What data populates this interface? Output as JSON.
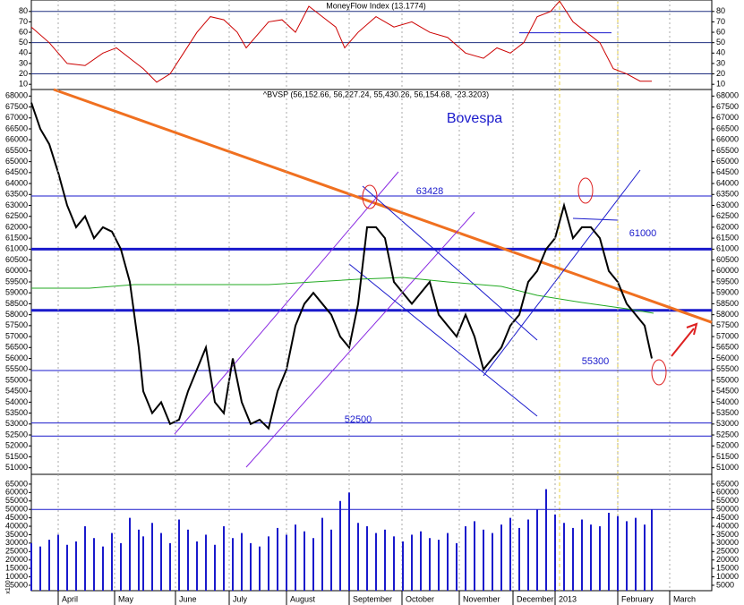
{
  "chart_data": [
    {
      "type": "line",
      "title": "MoneyFlow Index (13.1774)",
      "xlim": [
        0,
        76
      ],
      "ylim": [
        5,
        91
      ],
      "yticks": [
        10,
        20,
        30,
        40,
        50,
        60,
        70,
        80
      ],
      "levels": [
        20,
        50,
        80
      ],
      "x": [
        0,
        2,
        4,
        6,
        8,
        9.5,
        11,
        12.5,
        14,
        15.5,
        17,
        18.5,
        20,
        21.5,
        23,
        24,
        25,
        26.5,
        28,
        29.5,
        31,
        32.5,
        34,
        35,
        36.5,
        38.5,
        40.5,
        42.5,
        44.5,
        46.5,
        48.5,
        50.5,
        52,
        53.5,
        55,
        56.5,
        58,
        59,
        60.5,
        62,
        63.5,
        65,
        66.5,
        68,
        69.3
      ],
      "series": [
        {
          "color": "#cc0000",
          "values": [
            65,
            50,
            30,
            28,
            40,
            45,
            35,
            25,
            12,
            20,
            40,
            60,
            75,
            72,
            60,
            45,
            55,
            70,
            72,
            60,
            85,
            75,
            65,
            45,
            60,
            75,
            65,
            70,
            60,
            55,
            40,
            35,
            45,
            40,
            50,
            75,
            80,
            90,
            70,
            60,
            50,
            25,
            20,
            13,
            13
          ]
        }
      ],
      "trendlines": [
        {
          "color": "#1a1acc",
          "x": [
            54.5,
            64.8
          ],
          "y": [
            59.5,
            59.5
          ]
        }
      ]
    },
    {
      "type": "line",
      "title": "Bovespa",
      "subtitle": "^BVSP (56,152.66, 56,227.24, 55,430.26, 56,154.68, -23.3203)",
      "xlim": [
        0,
        76
      ],
      "ylim": [
        50700,
        68300
      ],
      "yticks": [
        51000,
        51500,
        52000,
        52500,
        53000,
        53500,
        54000,
        54500,
        55000,
        55500,
        56000,
        56500,
        57000,
        57500,
        58000,
        58500,
        59000,
        59500,
        60000,
        60500,
        61000,
        61500,
        62000,
        62500,
        63000,
        63500,
        64000,
        64500,
        65000,
        65500,
        66000,
        66500,
        67000,
        67500,
        68000
      ],
      "x": [
        0,
        1,
        2,
        3,
        4,
        5,
        6,
        7,
        8,
        9,
        10,
        11,
        12,
        12.5,
        13.5,
        14.5,
        15.5,
        16.5,
        17.5,
        18.5,
        19.5,
        20.5,
        21.5,
        22.5,
        23.5,
        24.5,
        25.5,
        26.5,
        27.5,
        28.5,
        29.5,
        30.5,
        31.5,
        32.5,
        33.5,
        34.5,
        35.5,
        36.5,
        37.5,
        38.5,
        39.5,
        40.5,
        41.5,
        42.5,
        43.5,
        44.5,
        45.5,
        46.5,
        47.5,
        48.5,
        49.5,
        50.5,
        51.5,
        52.5,
        53.5,
        54.5,
        55.5,
        56.5,
        57.5,
        58.5,
        59.5,
        60.5,
        61.5,
        62.5,
        63.5,
        64.5,
        65.5,
        66.5,
        67.5,
        68.5,
        69.3
      ],
      "series": [
        {
          "color": "#000000",
          "values": [
            67700,
            66500,
            65800,
            64500,
            63000,
            62000,
            62500,
            61500,
            62000,
            61800,
            61000,
            59500,
            56500,
            54500,
            53500,
            54000,
            53000,
            53200,
            54500,
            55500,
            56500,
            54000,
            53500,
            56000,
            54000,
            53000,
            53200,
            52800,
            54500,
            55500,
            57500,
            58500,
            59000,
            58500,
            58000,
            57000,
            56500,
            58500,
            62000,
            62000,
            61500,
            59500,
            59000,
            58500,
            59000,
            59500,
            58000,
            57500,
            57000,
            58000,
            57000,
            55500,
            56000,
            56500,
            57500,
            58000,
            59500,
            60000,
            61000,
            61500,
            63000,
            61500,
            62000,
            62000,
            61500,
            60000,
            59500,
            58500,
            58000,
            57500,
            56000
          ]
        }
      ],
      "hlines": [
        {
          "value": 63428,
          "bold": false
        },
        {
          "value": 61000,
          "bold": true
        },
        {
          "value": 58200,
          "bold": true
        },
        {
          "value": 55450,
          "bold": false
        },
        {
          "value": 53050,
          "bold": false
        },
        {
          "value": 52450,
          "bold": false
        }
      ],
      "hline_color": "#1a1acc",
      "annotations": [
        {
          "text": "63428",
          "x": 44.5,
          "y": 63634
        },
        {
          "text": "61000",
          "x": 68.3,
          "y": 61710
        },
        {
          "text": "55300",
          "x": 63,
          "y": 55860
        },
        {
          "text": "52500",
          "x": 36.5,
          "y": 53200
        }
      ],
      "trendlines": [
        {
          "color": "#f07020",
          "x": [
            2.5,
            76
          ],
          "y": [
            68300,
            57650
          ]
        },
        {
          "color": "#8a2be2",
          "x": [
            16,
            41
          ],
          "y": [
            52542,
            64534
          ]
        },
        {
          "color": "#8a2be2",
          "x": [
            24,
            49.5
          ],
          "y": [
            51027,
            62693
          ]
        },
        {
          "color": "#1a1acc",
          "x": [
            35.5,
            56.5
          ],
          "y": [
            60318,
            53360
          ]
        },
        {
          "color": "#1a1acc",
          "x": [
            37,
            56.5
          ],
          "y": [
            63880,
            56840
          ]
        },
        {
          "color": "#1a1acc",
          "x": [
            50.5,
            68
          ],
          "y": [
            55203,
            64616
          ]
        },
        {
          "color": "#1a1acc",
          "x": [
            60.5,
            65.5
          ],
          "y": [
            62406,
            62324
          ]
        },
        {
          "color": "#22aa22",
          "x": [
            0,
            6.5,
            11.5,
            26.5,
            36.5,
            41.5,
            46.5,
            52.5,
            56.5,
            61.5,
            66.5,
            69.5
          ],
          "y": [
            59213,
            59213,
            59376,
            59376,
            59622,
            59704,
            59500,
            59295,
            58886,
            58559,
            58272,
            58067
          ]
        }
      ]
    },
    {
      "type": "bar",
      "unit_label": "x100",
      "xlim": [
        0,
        76
      ],
      "ylim": [
        1800,
        70800
      ],
      "yticks": [
        5000,
        10000,
        15000,
        20000,
        25000,
        30000,
        35000,
        40000,
        45000,
        50000,
        55000,
        60000,
        65000
      ],
      "levels": [
        50000
      ],
      "xticks": [
        {
          "value": 3,
          "label": "April"
        },
        {
          "value": 9.3,
          "label": "May"
        },
        {
          "value": 16.1,
          "label": "June"
        },
        {
          "value": 22.1,
          "label": "July"
        },
        {
          "value": 28.5,
          "label": "August"
        },
        {
          "value": 35.5,
          "label": "September"
        },
        {
          "value": 41.4,
          "label": "October"
        },
        {
          "value": 47.8,
          "label": "November"
        },
        {
          "value": 53.8,
          "label": "December"
        },
        {
          "value": 58.5,
          "label": "2013"
        },
        {
          "value": 65.5,
          "label": "February"
        },
        {
          "value": 71.3,
          "label": "March"
        }
      ],
      "x": [
        0,
        1,
        2,
        3,
        4,
        5,
        6,
        7,
        8,
        9,
        10,
        11,
        12,
        12.5,
        13.5,
        14.5,
        15.5,
        16.5,
        17.5,
        18.5,
        19.5,
        20.5,
        21.5,
        22.5,
        23.5,
        24.5,
        25.5,
        26.5,
        27.5,
        28.5,
        29.5,
        30.5,
        31.5,
        32.5,
        33.5,
        34.5,
        35.5,
        36.5,
        37.5,
        38.5,
        39.5,
        40.5,
        41.5,
        42.5,
        43.5,
        44.5,
        45.5,
        46.5,
        47.5,
        48.5,
        49.5,
        50.5,
        51.5,
        52.5,
        53.5,
        54.5,
        55.5,
        56.5,
        57.5,
        58.5,
        59.5,
        60.5,
        61.5,
        62.5,
        63.5,
        64.5,
        65.5,
        66.5,
        67.5,
        68.5,
        69.3
      ],
      "color": "#1a1acc",
      "values": [
        30000,
        28000,
        32000,
        35000,
        29000,
        31000,
        40000,
        33000,
        28000,
        36000,
        30000,
        45000,
        38000,
        34000,
        42000,
        36000,
        30000,
        44000,
        38000,
        31000,
        35000,
        29000,
        40000,
        33000,
        36000,
        30000,
        28000,
        34000,
        39000,
        35000,
        41000,
        37000,
        33000,
        45000,
        38000,
        55000,
        60000,
        42000,
        40000,
        36000,
        38000,
        34000,
        31000,
        35000,
        37000,
        33000,
        32000,
        36000,
        30000,
        40000,
        43000,
        38000,
        36000,
        41000,
        45000,
        39000,
        44000,
        50000,
        62000,
        47000,
        42000,
        39000,
        44000,
        41000,
        40000,
        48000,
        46000,
        43000,
        45000,
        41000,
        50000
      ]
    }
  ]
}
